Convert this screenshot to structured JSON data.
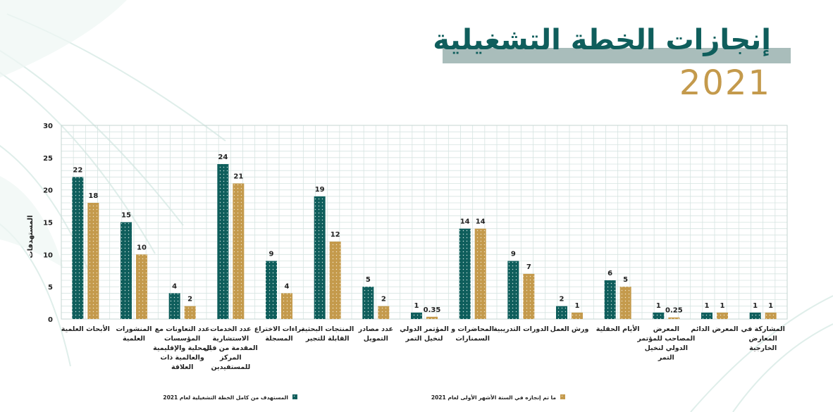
{
  "header": {
    "title": "إنجازات الخطة التشغيلية",
    "year": "2021"
  },
  "colors": {
    "target": "#0f5e5c",
    "achieved": "#c49a4c",
    "title": "#0f5e5c",
    "year": "#c49a4c"
  },
  "chart_data": {
    "type": "bar",
    "ylabel": "المستهدفات",
    "ylim": [
      0,
      30
    ],
    "yticks": [
      0,
      5,
      10,
      15,
      20,
      25,
      30
    ],
    "grid": true,
    "legend_position": "bottom",
    "categories": [
      [
        "الأبحاث العلمية"
      ],
      [
        "المنشورات",
        "العلمية"
      ],
      [
        "عدد التعاونات مع",
        "المؤسسات",
        "المحلية والإقليمية",
        "والعالمية ذات",
        "العلاقة"
      ],
      [
        "عدد الخدمات",
        "الاستشارية",
        "المقدمة من قبل",
        "المركز",
        "للمستفيدين"
      ],
      [
        "براءات الاختراع",
        "المسجلة"
      ],
      [
        "المنتجات البحثية",
        "القابلة للتجير"
      ],
      [
        "عدد مصادر",
        "التمويل"
      ],
      [
        "المؤتمر الدولي",
        "لنخيل التمر"
      ],
      [
        "المحاضرات و",
        "السمنارات"
      ],
      [
        "الدورات التدريبية"
      ],
      [
        "ورش العمل"
      ],
      [
        "الأيام الحقلية"
      ],
      [
        "المعرض",
        "المصاحب للمؤتمر",
        "الدولي لنخيل",
        "التمر"
      ],
      [
        "المعرض الدائم"
      ],
      [
        "المشاركة في",
        "المعارض",
        "الخارجية"
      ]
    ],
    "series": [
      {
        "name": "المستهدف من كامل الخطة التشغيلية لعام 2021",
        "values": [
          22,
          15,
          4,
          24,
          9,
          19,
          5,
          1,
          14,
          9,
          2,
          6,
          1,
          1,
          1
        ],
        "value_labels": [
          "22",
          "15",
          "4",
          "24",
          "9",
          "19",
          "5",
          "1",
          "14",
          "9",
          "2",
          "6",
          "1",
          "1",
          "1"
        ]
      },
      {
        "name": "ما تم إنجازه في الستة الأشهر الأولى لعام 2021",
        "values": [
          18,
          10,
          2,
          21,
          4,
          12,
          2,
          0.35,
          14,
          7,
          1,
          5,
          0.25,
          1,
          1
        ],
        "value_labels": [
          "18",
          "10",
          "2",
          "21",
          "4",
          "12",
          "2",
          "0.35",
          "14",
          "7",
          "1",
          "5",
          "0.25",
          "1",
          "1"
        ]
      }
    ]
  }
}
